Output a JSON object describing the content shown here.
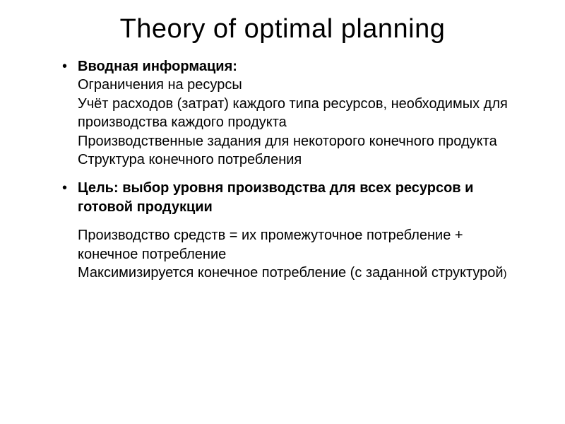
{
  "slide": {
    "title": "Theory of optimal planning",
    "bullet1": {
      "lead": "Вводная информация:",
      "line1": "Ограничения на ресурсы",
      "line2": "Учёт расходов (затрат) каждого типа ресурсов, необходимых для производства каждого продукта",
      "line3": "Производственные задания для некоторого конечного продукта",
      "line4": "Структура конечного потребления"
    },
    "bullet2": {
      "text": "Цель: выбор уровня производства для всех ресурсов и готовой продукции"
    },
    "para": {
      "line1": "Производство средств = их промежуточное потребление + конечное потребление",
      "line2a": "Максимизируется конечное потребление (с заданной структурой",
      "line2b": ")"
    }
  },
  "style": {
    "background_color": "#ffffff",
    "text_color": "#000000",
    "title_fontsize": 38,
    "body_fontsize": 20,
    "font_family": "Arial"
  }
}
